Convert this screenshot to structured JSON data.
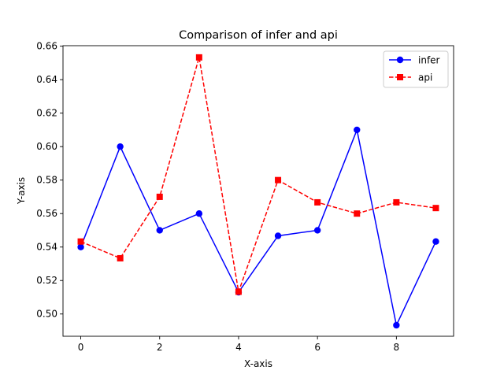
{
  "chart_data": {
    "type": "line",
    "title": "Comparison of infer and api",
    "xlabel": "X-axis",
    "ylabel": "Y-axis",
    "x": [
      0,
      1,
      2,
      3,
      4,
      5,
      6,
      7,
      8,
      9
    ],
    "xlim": [
      -0.45,
      9.45
    ],
    "ylim": [
      0.4867,
      0.6603
    ],
    "xticks": [
      0,
      2,
      4,
      6,
      8
    ],
    "xtick_labels": [
      "0",
      "2",
      "4",
      "6",
      "8"
    ],
    "yticks": [
      0.5,
      0.52,
      0.54,
      0.56,
      0.58,
      0.6,
      0.62,
      0.64,
      0.66
    ],
    "ytick_labels": [
      "0.50",
      "0.52",
      "0.54",
      "0.56",
      "0.58",
      "0.60",
      "0.62",
      "0.64",
      "0.66"
    ],
    "grid": false,
    "legend_position": "top-right",
    "series": [
      {
        "name": "infer",
        "color": "#0000ff",
        "linestyle": "solid",
        "marker": "circle",
        "values": [
          0.54,
          0.6,
          0.55,
          0.56,
          0.513,
          0.5467,
          0.55,
          0.61,
          0.4933,
          0.5433
        ]
      },
      {
        "name": "api",
        "color": "#ff0000",
        "linestyle": "dashed",
        "marker": "square",
        "values": [
          0.5433,
          0.5333,
          0.57,
          0.6533,
          0.5133,
          0.58,
          0.5667,
          0.56,
          0.5667,
          0.5633
        ]
      }
    ]
  }
}
